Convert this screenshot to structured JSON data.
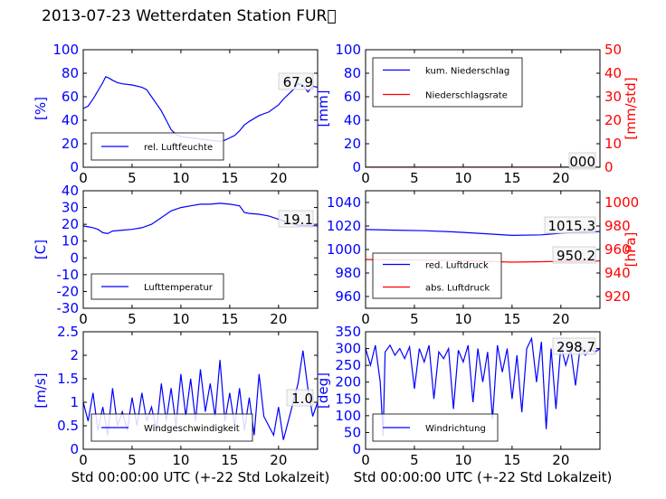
{
  "title": "2013-07-23 Wetterdaten Station FUR\u0000",
  "colors": {
    "left_axis": "#0000ff",
    "right_axis": "#ff0000",
    "line_primary": "#0000ff",
    "line_secondary": "#ff0000"
  },
  "chart_data": [
    {
      "type": "line",
      "ylabel": "[%]",
      "xlim": [
        0,
        24
      ],
      "ylim": [
        0,
        100
      ],
      "xticks": [
        0,
        5,
        10,
        15,
        20
      ],
      "yticks": [
        0,
        20,
        40,
        60,
        80,
        100
      ],
      "legend_position": "bottom-left",
      "current_value": "67.9",
      "series": [
        {
          "name": "rel. Luftfeuchte",
          "axis": "left",
          "x": [
            0,
            0.5,
            1,
            1.5,
            2,
            2.3,
            2.6,
            3,
            3.5,
            4,
            5,
            6,
            6.5,
            7,
            7.5,
            8,
            8.5,
            9,
            9.5,
            10,
            11,
            12,
            13,
            14,
            14.5,
            15,
            15.5,
            16,
            16.5,
            17,
            18,
            19,
            20,
            20.5,
            21,
            21.5,
            22,
            22.5,
            23,
            23.5,
            24
          ],
          "y": [
            50,
            52,
            58,
            65,
            72,
            77,
            76,
            74,
            72,
            71,
            70,
            68,
            66,
            60,
            54,
            48,
            40,
            32,
            28,
            26,
            25,
            24,
            23,
            22,
            23,
            25,
            27,
            31,
            36,
            39,
            44,
            47,
            53,
            58,
            62,
            66,
            71,
            70,
            64,
            69,
            68
          ]
        }
      ]
    },
    {
      "type": "line",
      "ylabel": "[mm]",
      "ylabel_right": "[mm/std]",
      "xlim": [
        0,
        24
      ],
      "ylim": [
        0,
        100
      ],
      "ylim_right": [
        0,
        50
      ],
      "xticks": [
        0,
        5,
        10,
        15,
        20
      ],
      "yticks": [
        0,
        20,
        40,
        60,
        80,
        100
      ],
      "yticks_right": [
        0,
        10,
        20,
        30,
        40,
        50
      ],
      "legend_position": "top-left",
      "current_value": "000",
      "series": [
        {
          "name": "kum. Niederschlag",
          "axis": "left",
          "x": [
            0,
            24
          ],
          "y": [
            0,
            0
          ]
        },
        {
          "name": "Niederschlagsrate",
          "axis": "right",
          "x": [
            0,
            24
          ],
          "y": [
            0,
            0
          ]
        }
      ]
    },
    {
      "type": "line",
      "ylabel": "[C]",
      "xlim": [
        0,
        24
      ],
      "ylim": [
        -30,
        40
      ],
      "xticks": [
        0,
        5,
        10,
        15,
        20
      ],
      "yticks": [
        -30,
        -20,
        -10,
        0,
        10,
        20,
        30,
        40
      ],
      "legend_position": "bottom-left",
      "current_value": "19.1",
      "series": [
        {
          "name": "Lufttemperatur",
          "axis": "left",
          "x": [
            0,
            0.5,
            1,
            1.5,
            2,
            2.5,
            3,
            4,
            5,
            6,
            7,
            8,
            9,
            10,
            11,
            12,
            13,
            14,
            15,
            16,
            16.5,
            17,
            18,
            19,
            20,
            21,
            22,
            23,
            24
          ],
          "y": [
            19,
            18.5,
            18,
            17,
            15,
            14.5,
            16,
            16.5,
            17,
            18,
            20,
            24,
            28,
            30,
            31,
            32,
            32,
            32.5,
            32,
            31,
            27,
            26.5,
            26,
            25,
            23,
            21,
            19.5,
            19.2,
            19.1
          ]
        }
      ]
    },
    {
      "type": "line",
      "ylabel_right": "[hPa]",
      "xlim": [
        0,
        24
      ],
      "ylim": [
        950,
        1050
      ],
      "ylim_right": [
        910,
        1010
      ],
      "xticks": [
        0,
        5,
        10,
        15,
        20
      ],
      "yticks": [
        960,
        980,
        1000,
        1020,
        1040
      ],
      "yticks_right": [
        920,
        940,
        960,
        980,
        1000
      ],
      "legend_position": "bottom-left",
      "current_values": [
        "1015.3",
        "950.2"
      ],
      "series": [
        {
          "name": "red. Luftdruck",
          "axis": "left",
          "x": [
            0,
            3,
            6,
            9,
            12,
            15,
            18,
            21,
            24
          ],
          "y": [
            1017,
            1016.5,
            1016,
            1015,
            1013.5,
            1012,
            1012.5,
            1014.5,
            1015.3
          ]
        },
        {
          "name": "abs. Luftdruck",
          "axis": "right",
          "x": [
            0,
            3,
            6,
            9,
            12,
            15,
            18,
            21,
            24
          ],
          "y": [
            951.5,
            951.2,
            951,
            950.6,
            950,
            949.2,
            949.6,
            950,
            950.2
          ]
        }
      ]
    },
    {
      "type": "line",
      "xlabel": "Std 00:00:00 UTC (+-22 Std Lokalzeit)",
      "ylabel": "[m/s]",
      "xlim": [
        0,
        24
      ],
      "ylim": [
        0,
        2.5
      ],
      "xticks": [
        0,
        5,
        10,
        15,
        20
      ],
      "yticks": [
        0,
        0.5,
        1,
        1.5,
        2,
        2.5
      ],
      "legend_position": "bottom-left",
      "current_value": "1.0",
      "series": [
        {
          "name": "Windgeschwindigkeit",
          "axis": "left",
          "x": [
            0,
            0.5,
            1,
            1.5,
            2,
            2.5,
            3,
            3.5,
            4,
            4.5,
            5,
            5.5,
            6,
            6.5,
            7,
            7.5,
            8,
            8.5,
            9,
            9.5,
            10,
            10.5,
            11,
            11.5,
            12,
            12.5,
            13,
            13.5,
            14,
            14.5,
            15,
            15.5,
            16,
            16.5,
            17,
            17.5,
            18,
            18.5,
            19,
            19.5,
            20,
            20.5,
            21,
            21.5,
            22,
            22.5,
            23,
            23.5,
            24
          ],
          "y": [
            1.0,
            0.6,
            1.2,
            0.4,
            0.9,
            0.3,
            1.3,
            0.5,
            0.8,
            0.4,
            1.1,
            0.5,
            1.2,
            0.6,
            0.9,
            0.4,
            1.4,
            0.6,
            1.3,
            0.5,
            1.6,
            0.7,
            1.5,
            0.6,
            1.7,
            0.8,
            1.4,
            0.7,
            1.9,
            0.6,
            1.2,
            0.5,
            1.3,
            0.4,
            1.1,
            0.3,
            1.6,
            0.7,
            0.5,
            0.3,
            0.9,
            0.2,
            0.6,
            1.0,
            1.4,
            2.1,
            1.3,
            0.7,
            1.0
          ]
        }
      ]
    },
    {
      "type": "line",
      "xlabel": "Std 00:00:00 UTC (+-22 Std Lokalzeit)",
      "ylabel": "[deg]",
      "xlim": [
        0,
        24
      ],
      "ylim": [
        0,
        350
      ],
      "xticks": [
        0,
        5,
        10,
        15,
        20
      ],
      "yticks": [
        0,
        50,
        100,
        150,
        200,
        250,
        300,
        350
      ],
      "legend_position": "bottom-left",
      "current_value": "298.7",
      "series": [
        {
          "name": "Windrichtung",
          "axis": "left",
          "x": [
            0,
            0.5,
            1,
            1.5,
            1.8,
            2,
            2.5,
            3,
            3.5,
            4,
            4.5,
            5,
            5.5,
            6,
            6.5,
            7,
            7.5,
            8,
            8.5,
            9,
            9.5,
            10,
            10.5,
            11,
            11.5,
            12,
            12.5,
            13,
            13.5,
            14,
            14.5,
            15,
            15.5,
            16,
            16.5,
            17,
            17.5,
            18,
            18.5,
            19,
            19.5,
            20,
            20.5,
            21,
            21.5,
            22,
            22.5,
            23,
            23.5,
            24
          ],
          "y": [
            300,
            250,
            310,
            200,
            40,
            290,
            310,
            280,
            300,
            270,
            305,
            180,
            300,
            260,
            310,
            150,
            290,
            270,
            300,
            120,
            295,
            260,
            310,
            140,
            300,
            200,
            290,
            90,
            310,
            230,
            300,
            150,
            280,
            110,
            300,
            330,
            200,
            320,
            60,
            300,
            120,
            310,
            250,
            300,
            190,
            310,
            280,
            300,
            290,
            299
          ]
        }
      ]
    }
  ]
}
